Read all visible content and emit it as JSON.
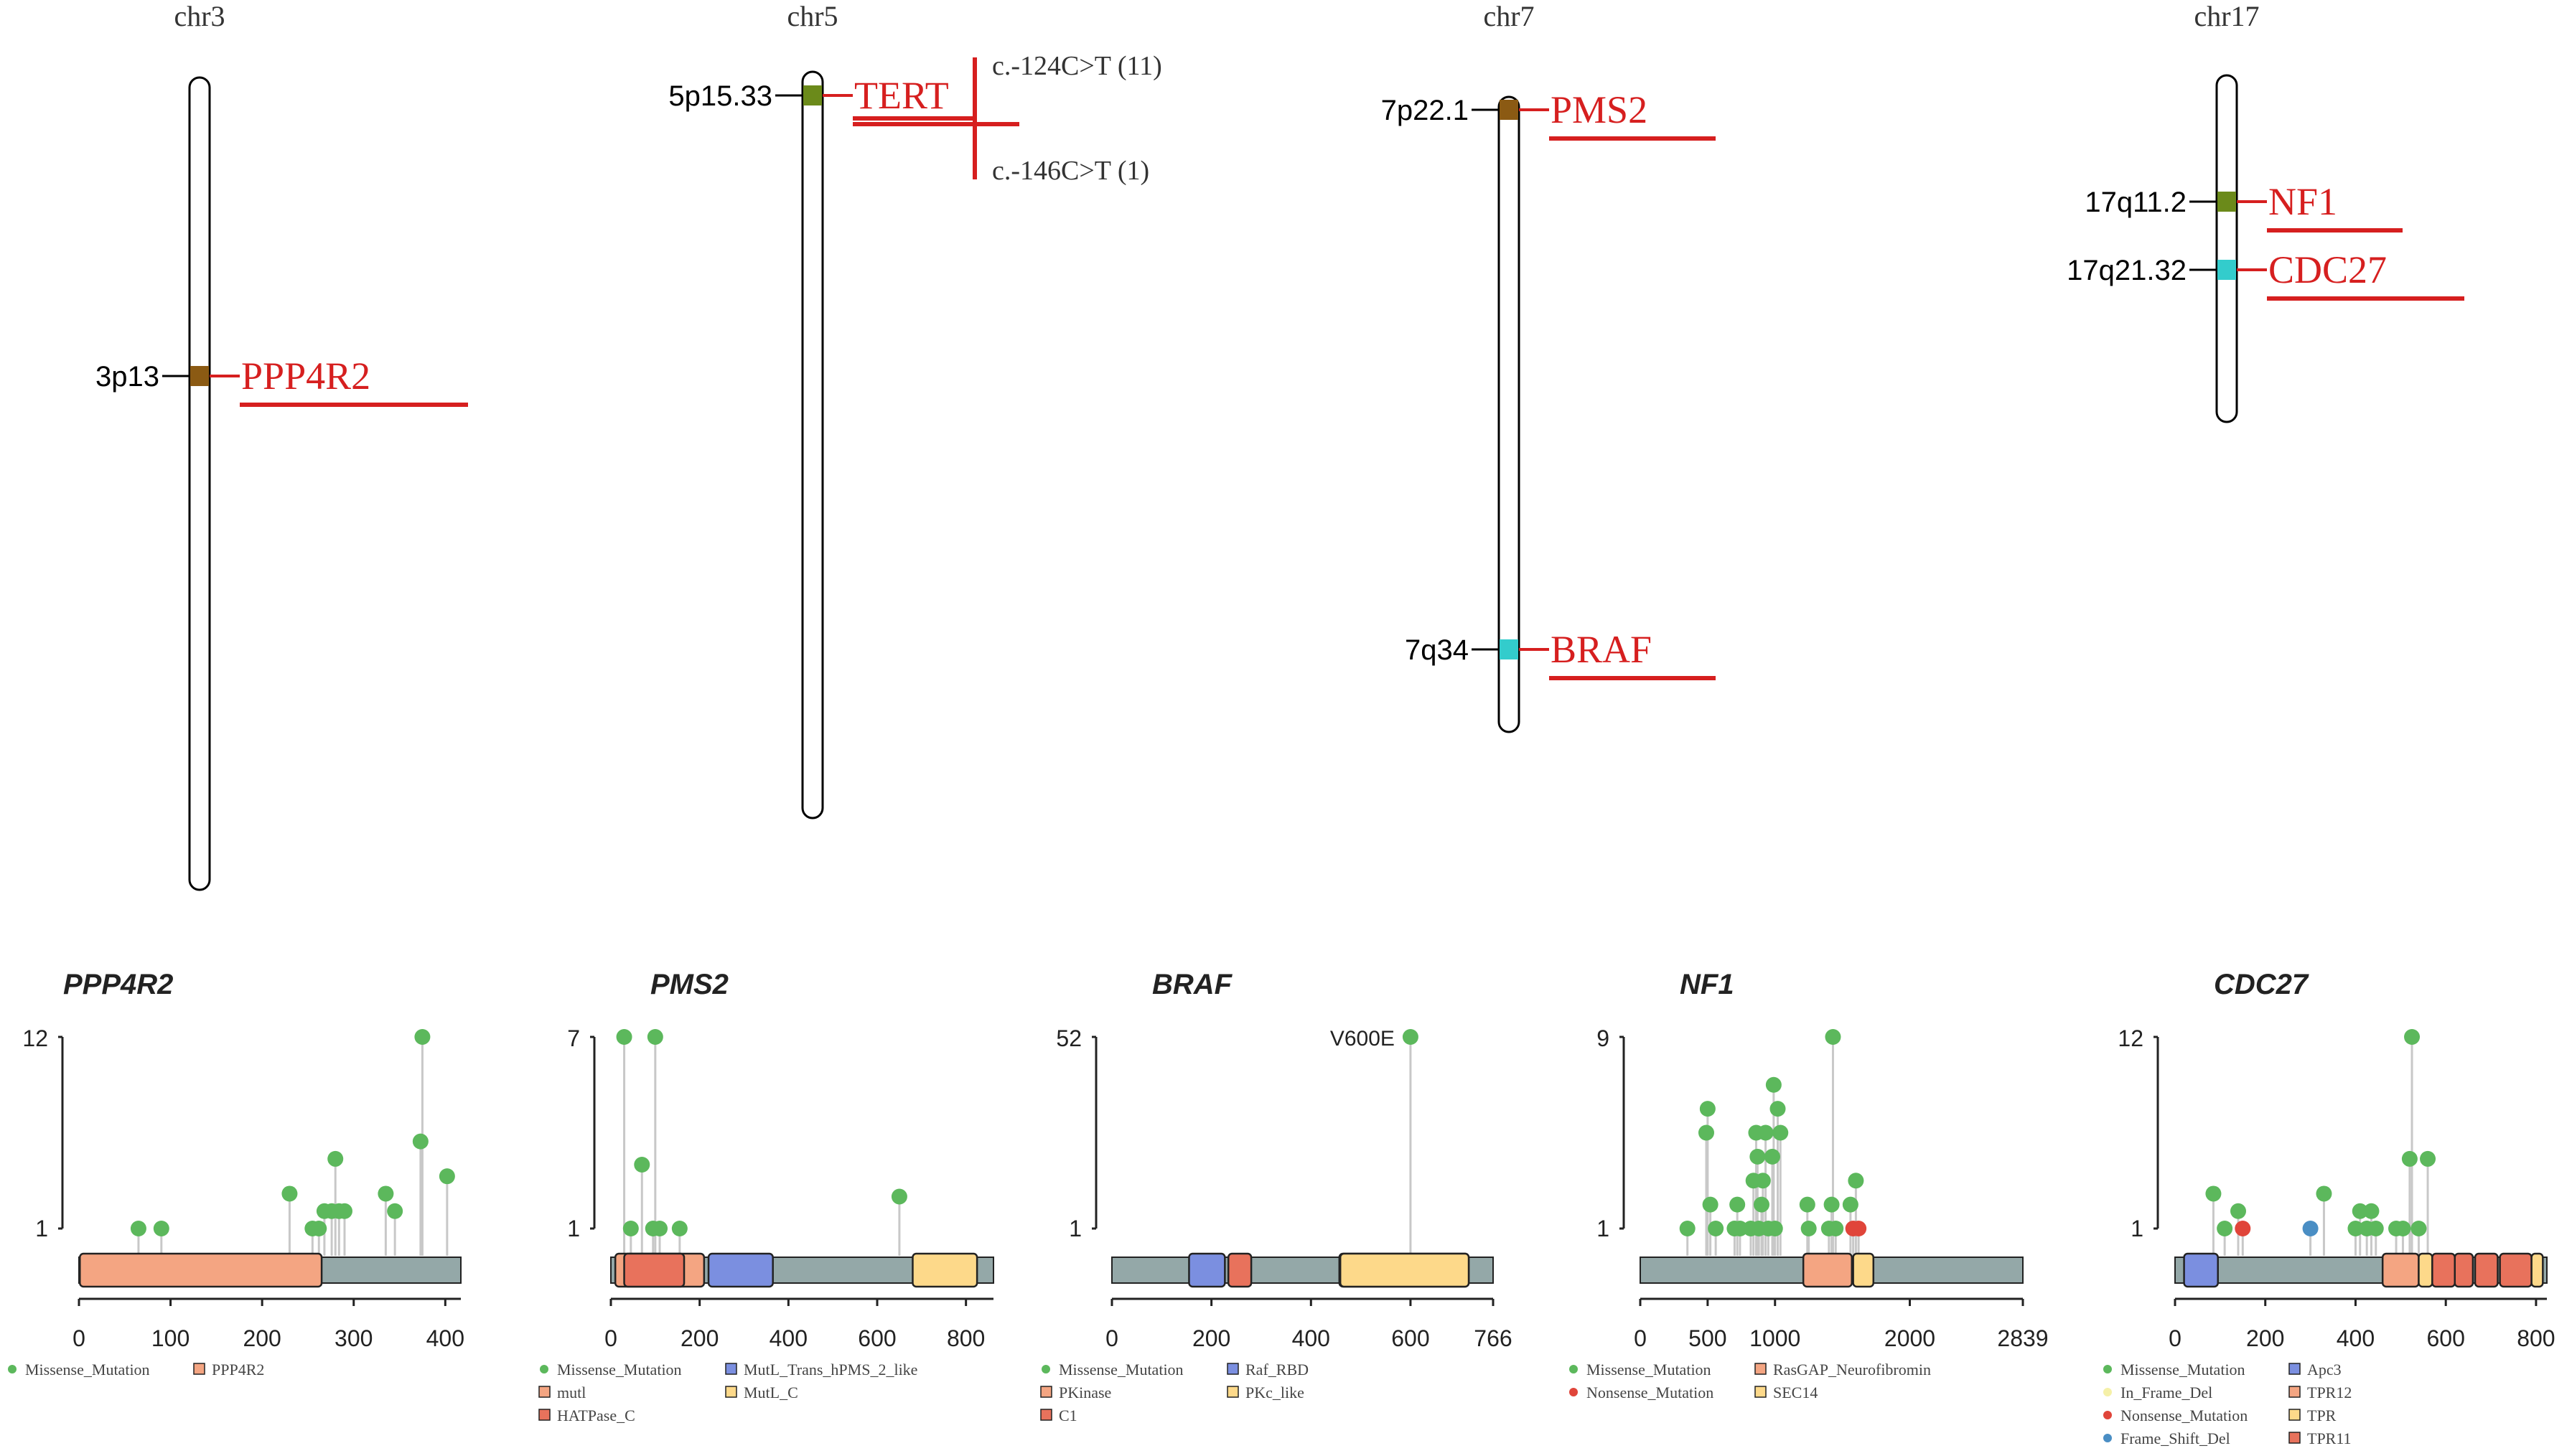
{
  "colors": {
    "chrom_outline": "#000000",
    "gene_red": "#d61f1f",
    "band_brown": "#8b5a13",
    "band_green": "#6b8a1a",
    "band_cyan": "#33cccc",
    "missense": "#5cb85c",
    "nonsense": "#e0453a",
    "inframe": "#f5f0a8",
    "frameshift": "#4a8ec4",
    "backbone": "#94a8a8",
    "stem": "#c8c8c8"
  },
  "ideogram": {
    "chromosomes": [
      {
        "name": "chr3",
        "bands": [
          {
            "band": "3p13",
            "gene": "PPP4R2",
            "color": "band_brown"
          }
        ]
      },
      {
        "name": "chr5",
        "bands": [
          {
            "band": "5p15.33",
            "gene": "TERT",
            "color": "band_green"
          }
        ],
        "variants": [
          "c.-124C>T (11)",
          "c.-146C>T (1)"
        ]
      },
      {
        "name": "chr7",
        "bands": [
          {
            "band": "7p22.1",
            "gene": "PMS2",
            "color": "band_brown"
          },
          {
            "band": "7q34",
            "gene": "BRAF",
            "color": "band_cyan"
          }
        ]
      },
      {
        "name": "chr17",
        "bands": [
          {
            "band": "17q11.2",
            "gene": "NF1",
            "color": "band_green"
          },
          {
            "band": "17q21.32",
            "gene": "CDC27",
            "color": "band_cyan"
          }
        ]
      }
    ]
  },
  "chart_data": [
    {
      "type": "lollipop",
      "title": "PPP4R2",
      "protein_length": 417,
      "ylim": [
        1,
        12
      ],
      "yticks": [
        "12",
        "1"
      ],
      "xticks": [
        0,
        100,
        200,
        300,
        400
      ],
      "domains": [
        {
          "name": "PPP4R2",
          "start": 1,
          "end": 265,
          "color": "#f4a582"
        }
      ],
      "mutations": [
        {
          "pos": 65,
          "count": 1,
          "type": "Missense_Mutation"
        },
        {
          "pos": 90,
          "count": 1,
          "type": "Missense_Mutation"
        },
        {
          "pos": 230,
          "count": 3,
          "type": "Missense_Mutation"
        },
        {
          "pos": 255,
          "count": 1,
          "type": "Missense_Mutation"
        },
        {
          "pos": 262,
          "count": 1,
          "type": "Missense_Mutation"
        },
        {
          "pos": 268,
          "count": 2,
          "type": "Missense_Mutation"
        },
        {
          "pos": 276,
          "count": 2,
          "type": "Missense_Mutation"
        },
        {
          "pos": 280,
          "count": 5,
          "type": "Missense_Mutation"
        },
        {
          "pos": 284,
          "count": 2,
          "type": "Missense_Mutation"
        },
        {
          "pos": 290,
          "count": 2,
          "type": "Missense_Mutation"
        },
        {
          "pos": 335,
          "count": 3,
          "type": "Missense_Mutation"
        },
        {
          "pos": 345,
          "count": 2,
          "type": "Missense_Mutation"
        },
        {
          "pos": 373,
          "count": 6,
          "type": "Missense_Mutation"
        },
        {
          "pos": 375,
          "count": 12,
          "type": "Missense_Mutation"
        },
        {
          "pos": 402,
          "count": 4,
          "type": "Missense_Mutation"
        }
      ],
      "legend": [
        {
          "label": "Missense_Mutation",
          "shape": "dot",
          "color": "#5cb85c"
        },
        {
          "label": "PPP4R2",
          "shape": "box",
          "color": "#f4a582"
        }
      ]
    },
    {
      "type": "lollipop",
      "title": "PMS2",
      "protein_length": 862,
      "ylim": [
        1,
        7
      ],
      "yticks": [
        "7",
        "1"
      ],
      "xticks": [
        0,
        200,
        400,
        600,
        800
      ],
      "domains": [
        {
          "name": "mutl",
          "start": 10,
          "end": 210,
          "color": "#f4a582"
        },
        {
          "name": "MutL_Trans_hPMS_2_like",
          "start": 220,
          "end": 365,
          "color": "#7b8fe0"
        },
        {
          "name": "HATPase_C",
          "start": 30,
          "end": 165,
          "color": "#e8725c"
        },
        {
          "name": "MutL_C",
          "start": 680,
          "end": 825,
          "color": "#fdd98a"
        }
      ],
      "mutations": [
        {
          "pos": 30,
          "count": 7,
          "type": "Missense_Mutation"
        },
        {
          "pos": 45,
          "count": 1,
          "type": "Missense_Mutation"
        },
        {
          "pos": 70,
          "count": 3,
          "type": "Missense_Mutation"
        },
        {
          "pos": 95,
          "count": 1,
          "type": "Missense_Mutation"
        },
        {
          "pos": 100,
          "count": 7,
          "type": "Missense_Mutation"
        },
        {
          "pos": 110,
          "count": 1,
          "type": "Missense_Mutation"
        },
        {
          "pos": 155,
          "count": 1,
          "type": "Missense_Mutation"
        },
        {
          "pos": 650,
          "count": 2,
          "type": "Missense_Mutation"
        }
      ],
      "legend": [
        {
          "label": "Missense_Mutation",
          "shape": "dot",
          "color": "#5cb85c"
        },
        {
          "label": "MutL_Trans_hPMS_2_like",
          "shape": "box",
          "color": "#7b8fe0"
        },
        {
          "label": "mutl",
          "shape": "box",
          "color": "#f4a582"
        },
        {
          "label": "MutL_C",
          "shape": "box",
          "color": "#fdd98a"
        },
        {
          "label": "HATPase_C",
          "shape": "box",
          "color": "#e8725c"
        }
      ]
    },
    {
      "type": "lollipop",
      "title": "BRAF",
      "protein_length": 766,
      "ylim": [
        1,
        52
      ],
      "yticks": [
        "52",
        "1"
      ],
      "xticks": [
        0,
        200,
        400,
        600,
        766
      ],
      "domains": [
        {
          "name": "Raf_RBD",
          "start": 155,
          "end": 227,
          "color": "#7b8fe0"
        },
        {
          "name": "C1",
          "start": 234,
          "end": 280,
          "color": "#e8725c"
        },
        {
          "name": "PKinase",
          "start": 457,
          "end": 717,
          "color": "#f4a582"
        },
        {
          "name": "PKc_like",
          "start": 459,
          "end": 717,
          "color": "#fdd98a"
        }
      ],
      "mutations": [
        {
          "pos": 600,
          "count": 52,
          "type": "Missense_Mutation",
          "label": "V600E"
        }
      ],
      "legend": [
        {
          "label": "Missense_Mutation",
          "shape": "dot",
          "color": "#5cb85c"
        },
        {
          "label": "Raf_RBD",
          "shape": "box",
          "color": "#7b8fe0"
        },
        {
          "label": "PKinase",
          "shape": "box",
          "color": "#f4a582"
        },
        {
          "label": "PKc_like",
          "shape": "box",
          "color": "#fdd98a"
        },
        {
          "label": "C1",
          "shape": "box",
          "color": "#e8725c"
        }
      ]
    },
    {
      "type": "lollipop",
      "title": "NF1",
      "protein_length": 2839,
      "ylim": [
        1,
        9
      ],
      "yticks": [
        "9",
        "1"
      ],
      "xticks": [
        0,
        500,
        1000,
        2000,
        2839
      ],
      "domains": [
        {
          "name": "RasGAP_Neurofibromin",
          "start": 1210,
          "end": 1570,
          "color": "#f4a582"
        },
        {
          "name": "SEC14",
          "start": 1580,
          "end": 1730,
          "color": "#fdd98a"
        }
      ],
      "mutations": [
        {
          "pos": 350,
          "count": 1,
          "type": "Missense_Mutation"
        },
        {
          "pos": 490,
          "count": 5,
          "type": "Missense_Mutation"
        },
        {
          "pos": 500,
          "count": 6,
          "type": "Missense_Mutation"
        },
        {
          "pos": 520,
          "count": 2,
          "type": "Missense_Mutation"
        },
        {
          "pos": 560,
          "count": 1,
          "type": "Missense_Mutation"
        },
        {
          "pos": 700,
          "count": 1,
          "type": "Missense_Mutation"
        },
        {
          "pos": 720,
          "count": 2,
          "type": "Missense_Mutation"
        },
        {
          "pos": 740,
          "count": 1,
          "type": "Missense_Mutation"
        },
        {
          "pos": 820,
          "count": 1,
          "type": "Missense_Mutation"
        },
        {
          "pos": 840,
          "count": 3,
          "type": "Missense_Mutation"
        },
        {
          "pos": 860,
          "count": 5,
          "type": "Missense_Mutation"
        },
        {
          "pos": 870,
          "count": 4,
          "type": "Missense_Mutation"
        },
        {
          "pos": 880,
          "count": 1,
          "type": "Missense_Mutation"
        },
        {
          "pos": 900,
          "count": 2,
          "type": "Missense_Mutation"
        },
        {
          "pos": 910,
          "count": 3,
          "type": "Missense_Mutation"
        },
        {
          "pos": 930,
          "count": 5,
          "type": "Missense_Mutation"
        },
        {
          "pos": 950,
          "count": 1,
          "type": "Missense_Mutation"
        },
        {
          "pos": 980,
          "count": 4,
          "type": "Missense_Mutation"
        },
        {
          "pos": 990,
          "count": 7,
          "type": "Missense_Mutation"
        },
        {
          "pos": 1000,
          "count": 1,
          "type": "Missense_Mutation"
        },
        {
          "pos": 1020,
          "count": 6,
          "type": "Missense_Mutation"
        },
        {
          "pos": 1040,
          "count": 5,
          "type": "Missense_Mutation"
        },
        {
          "pos": 1240,
          "count": 2,
          "type": "Missense_Mutation"
        },
        {
          "pos": 1250,
          "count": 1,
          "type": "Missense_Mutation"
        },
        {
          "pos": 1400,
          "count": 1,
          "type": "Missense_Mutation"
        },
        {
          "pos": 1420,
          "count": 2,
          "type": "Missense_Mutation"
        },
        {
          "pos": 1430,
          "count": 9,
          "type": "Missense_Mutation"
        },
        {
          "pos": 1450,
          "count": 1,
          "type": "Missense_Mutation"
        },
        {
          "pos": 1560,
          "count": 2,
          "type": "Missense_Mutation"
        },
        {
          "pos": 1580,
          "count": 1,
          "type": "Nonsense_Mutation"
        },
        {
          "pos": 1600,
          "count": 3,
          "type": "Missense_Mutation"
        },
        {
          "pos": 1620,
          "count": 1,
          "type": "Nonsense_Mutation"
        }
      ],
      "legend": [
        {
          "label": "Missense_Mutation",
          "shape": "dot",
          "color": "#5cb85c"
        },
        {
          "label": "RasGAP_Neurofibromin",
          "shape": "box",
          "color": "#f4a582"
        },
        {
          "label": "Nonsense_Mutation",
          "shape": "dot",
          "color": "#e0453a"
        },
        {
          "label": "SEC14",
          "shape": "box",
          "color": "#fdd98a"
        }
      ]
    },
    {
      "type": "lollipop",
      "title": "CDC27",
      "protein_length": 824,
      "ylim": [
        1,
        12
      ],
      "yticks": [
        "12",
        "1"
      ],
      "xticks": [
        0,
        200,
        400,
        600,
        800
      ],
      "domains": [
        {
          "name": "Apc3",
          "start": 20,
          "end": 95,
          "color": "#7b8fe0"
        },
        {
          "name": "TPR12",
          "start": 460,
          "end": 540,
          "color": "#f4a582"
        },
        {
          "name": "TPR",
          "start": 540,
          "end": 570,
          "color": "#fdd98a"
        },
        {
          "name": "TPR11",
          "start": 570,
          "end": 620,
          "color": "#e8725c"
        },
        {
          "name": "TPR11",
          "start": 620,
          "end": 660,
          "color": "#e8725c"
        },
        {
          "name": "TPR11",
          "start": 665,
          "end": 715,
          "color": "#e8725c"
        },
        {
          "name": "TPR11",
          "start": 720,
          "end": 790,
          "color": "#e8725c"
        },
        {
          "name": "TPR",
          "start": 790,
          "end": 815,
          "color": "#fdd98a"
        }
      ],
      "mutations": [
        {
          "pos": 85,
          "count": 3,
          "type": "Missense_Mutation"
        },
        {
          "pos": 110,
          "count": 1,
          "type": "Missense_Mutation"
        },
        {
          "pos": 140,
          "count": 2,
          "type": "Missense_Mutation"
        },
        {
          "pos": 150,
          "count": 1,
          "type": "Nonsense_Mutation"
        },
        {
          "pos": 300,
          "count": 1,
          "type": "Frame_Shift_Del"
        },
        {
          "pos": 330,
          "count": 3,
          "type": "Missense_Mutation"
        },
        {
          "pos": 400,
          "count": 1,
          "type": "Missense_Mutation"
        },
        {
          "pos": 410,
          "count": 2,
          "type": "Missense_Mutation"
        },
        {
          "pos": 425,
          "count": 1,
          "type": "Missense_Mutation"
        },
        {
          "pos": 435,
          "count": 2,
          "type": "Missense_Mutation"
        },
        {
          "pos": 445,
          "count": 1,
          "type": "Missense_Mutation"
        },
        {
          "pos": 490,
          "count": 1,
          "type": "Missense_Mutation"
        },
        {
          "pos": 505,
          "count": 1,
          "type": "Missense_Mutation"
        },
        {
          "pos": 520,
          "count": 5,
          "type": "Missense_Mutation"
        },
        {
          "pos": 525,
          "count": 12,
          "type": "Missense_Mutation"
        },
        {
          "pos": 540,
          "count": 1,
          "type": "Missense_Mutation"
        },
        {
          "pos": 560,
          "count": 5,
          "type": "Missense_Mutation"
        }
      ],
      "legend": [
        {
          "label": "Missense_Mutation",
          "shape": "dot",
          "color": "#5cb85c"
        },
        {
          "label": "Apc3",
          "shape": "box",
          "color": "#7b8fe0"
        },
        {
          "label": "In_Frame_Del",
          "shape": "dot",
          "color": "#f5f0a8"
        },
        {
          "label": "TPR12",
          "shape": "box",
          "color": "#f4a582"
        },
        {
          "label": "Nonsense_Mutation",
          "shape": "dot",
          "color": "#e0453a"
        },
        {
          "label": "TPR",
          "shape": "box",
          "color": "#fdd98a"
        },
        {
          "label": "Frame_Shift_Del",
          "shape": "dot",
          "color": "#4a8ec4"
        },
        {
          "label": "TPR11",
          "shape": "box",
          "color": "#e8725c"
        }
      ]
    }
  ]
}
